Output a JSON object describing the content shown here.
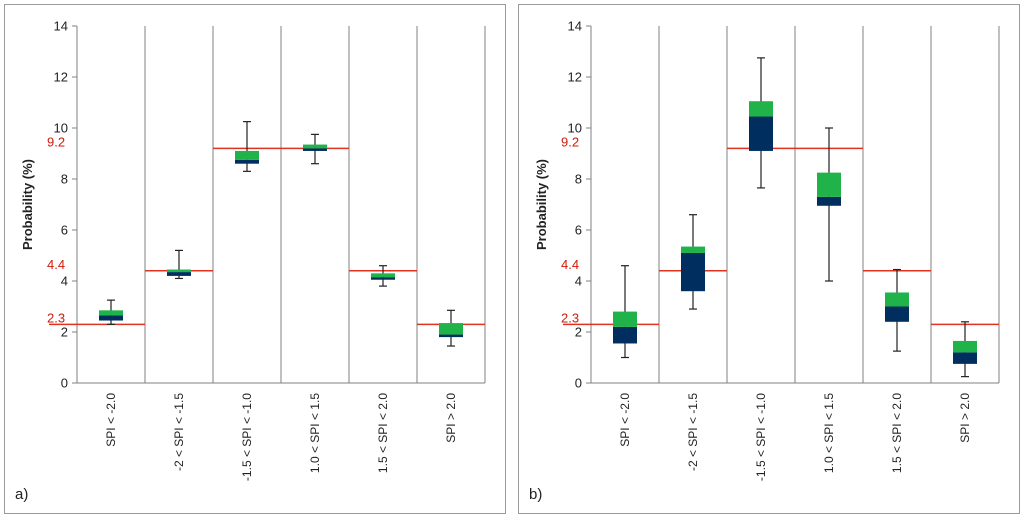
{
  "chart_data": [
    {
      "panel_label": "a)",
      "type": "boxplot",
      "ylabel": "Probability (%)",
      "ylim": [
        0,
        14
      ],
      "yticks": [
        0,
        2,
        4,
        6,
        8,
        10,
        12,
        14
      ],
      "colors": {
        "box_lower": "#002f5f",
        "box_upper": "#1fb34a",
        "reference": "#e0321e",
        "whisker": "#222222",
        "grid": "#808080"
      },
      "categories": [
        "SPI < -2.0",
        "-2 < SPI < -1.5",
        "-1.5 < SPI < -1.0",
        "1.0 < SPI < 1.5",
        "1.5 < SPI < 2.0",
        "SPI > 2.0"
      ],
      "reference_lines": [
        {
          "label": "2.3",
          "value": 2.3,
          "categories": [
            0
          ]
        },
        {
          "label": "4.4",
          "value": 4.4,
          "categories": [
            1
          ]
        },
        {
          "label": "9.2",
          "value": 9.2,
          "categories": [
            2,
            3
          ]
        },
        {
          "label": "",
          "value": 4.4,
          "categories": [
            4
          ]
        },
        {
          "label": "",
          "value": 2.3,
          "categories": [
            5
          ]
        }
      ],
      "boxes": [
        {
          "min": 2.3,
          "q1": 2.45,
          "median": 2.65,
          "q3": 2.85,
          "max": 3.25
        },
        {
          "min": 4.1,
          "q1": 4.2,
          "median": 4.35,
          "q3": 4.45,
          "max": 5.2
        },
        {
          "min": 8.3,
          "q1": 8.6,
          "median": 8.75,
          "q3": 9.1,
          "max": 10.25
        },
        {
          "min": 8.6,
          "q1": 9.1,
          "median": 9.2,
          "q3": 9.35,
          "max": 9.75
        },
        {
          "min": 3.8,
          "q1": 4.05,
          "median": 4.15,
          "q3": 4.3,
          "max": 4.6
        },
        {
          "min": 1.45,
          "q1": 1.8,
          "median": 1.9,
          "q3": 2.35,
          "max": 2.85
        }
      ]
    },
    {
      "panel_label": "b)",
      "type": "boxplot",
      "ylabel": "Probability (%)",
      "ylim": [
        0,
        14
      ],
      "yticks": [
        0,
        2,
        4,
        6,
        8,
        10,
        12,
        14
      ],
      "colors": {
        "box_lower": "#002f5f",
        "box_upper": "#1fb34a",
        "reference": "#e0321e",
        "whisker": "#222222",
        "grid": "#808080"
      },
      "categories": [
        "SPI < -2.0",
        "-2 < SPI < -1.5",
        "-1.5 < SPI < -1.0",
        "1.0 < SPI < 1.5",
        "1.5 < SPI < 2.0",
        "SPI > 2.0"
      ],
      "reference_lines": [
        {
          "label": "2.3",
          "value": 2.3,
          "categories": [
            0
          ]
        },
        {
          "label": "4.4",
          "value": 4.4,
          "categories": [
            1
          ]
        },
        {
          "label": "9.2",
          "value": 9.2,
          "categories": [
            2,
            3
          ]
        },
        {
          "label": "",
          "value": 4.4,
          "categories": [
            4
          ]
        },
        {
          "label": "",
          "value": 2.3,
          "categories": [
            5
          ]
        }
      ],
      "boxes": [
        {
          "min": 1.0,
          "q1": 1.55,
          "median": 2.2,
          "q3": 2.8,
          "max": 4.6
        },
        {
          "min": 2.9,
          "q1": 3.6,
          "median": 5.1,
          "q3": 5.35,
          "max": 6.6
        },
        {
          "min": 7.65,
          "q1": 9.1,
          "median": 10.45,
          "q3": 11.05,
          "max": 12.75
        },
        {
          "min": 4.0,
          "q1": 6.95,
          "median": 7.3,
          "q3": 8.25,
          "max": 10.0
        },
        {
          "min": 1.25,
          "q1": 2.4,
          "median": 3.0,
          "q3": 3.55,
          "max": 4.45
        },
        {
          "min": 0.25,
          "q1": 0.75,
          "median": 1.2,
          "q3": 1.65,
          "max": 2.4
        }
      ]
    }
  ]
}
